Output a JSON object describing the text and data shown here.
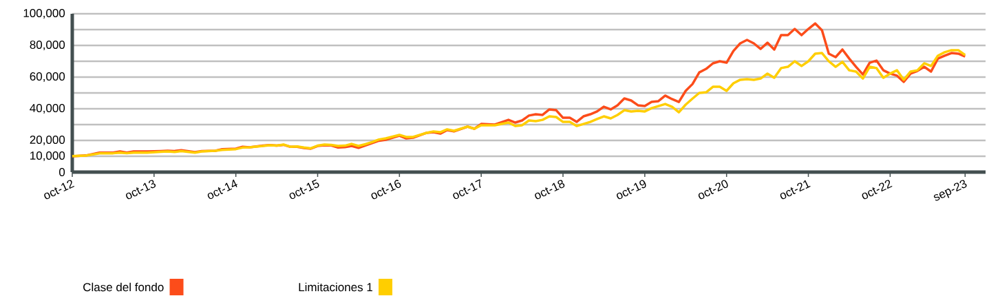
{
  "chart_data": {
    "type": "line",
    "x": [
      "2012-10",
      "2012-12",
      "2013-02",
      "2013-04",
      "2013-05",
      "2013-06",
      "2013-07",
      "2013-09",
      "2013-11",
      "2013-12",
      "2014-01",
      "2014-02",
      "2014-04",
      "2014-05",
      "2014-07",
      "2014-08",
      "2014-10",
      "2014-11",
      "2014-12",
      "2015-02",
      "2015-03",
      "2015-04",
      "2015-05",
      "2015-06",
      "2015-07",
      "2015-08",
      "2015-09",
      "2015-10",
      "2015-11",
      "2015-12",
      "2016-01",
      "2016-02",
      "2016-03",
      "2016-04",
      "2016-05",
      "2016-06",
      "2016-07",
      "2016-08",
      "2016-10",
      "2016-11",
      "2016-12",
      "2017-02",
      "2017-03",
      "2017-04",
      "2017-05",
      "2017-06",
      "2017-08",
      "2017-09",
      "2017-10",
      "2017-12",
      "2018-02",
      "2018-03",
      "2018-04",
      "2018-05",
      "2018-06",
      "2018-07",
      "2018-08",
      "2018-09",
      "2018-10",
      "2018-11",
      "2018-12",
      "2019-01",
      "2019-02",
      "2019-03",
      "2019-04",
      "2019-05",
      "2019-06",
      "2019-07",
      "2019-08",
      "2019-09",
      "2019-10",
      "2019-11",
      "2019-12",
      "2020-01",
      "2020-02",
      "2020-03",
      "2020-04",
      "2020-05",
      "2020-06",
      "2020-07",
      "2020-08",
      "2020-09",
      "2020-10",
      "2020-11",
      "2020-12",
      "2021-01",
      "2021-02",
      "2021-03",
      "2021-04",
      "2021-05",
      "2021-06",
      "2021-07",
      "2021-08",
      "2021-09",
      "2021-10",
      "2021-11",
      "2021-12",
      "2022-01",
      "2022-02",
      "2022-03",
      "2022-04",
      "2022-05",
      "2022-06",
      "2022-07",
      "2022-08",
      "2022-09",
      "2022-10",
      "2022-11",
      "2022-12",
      "2023-01",
      "2023-02",
      "2023-03",
      "2023-04",
      "2023-05",
      "2023-06",
      "2023-07",
      "2023-08",
      "2023-09"
    ],
    "series": [
      {
        "name": "Clase del fondo",
        "color": "#fc4c1a",
        "values": [
          10000,
          10500,
          12300,
          12300,
          13000,
          12300,
          13000,
          13000,
          13300,
          13500,
          13300,
          13800,
          12600,
          13300,
          13500,
          14500,
          14800,
          16000,
          15700,
          16700,
          17100,
          16700,
          17200,
          16000,
          16000,
          15200,
          14800,
          16500,
          17000,
          16800,
          15500,
          15800,
          16500,
          15300,
          16800,
          18300,
          19800,
          20400,
          23000,
          21300,
          21700,
          24800,
          25200,
          24300,
          26500,
          25700,
          28700,
          27400,
          30400,
          30000,
          33000,
          31300,
          32600,
          35700,
          36500,
          36100,
          39600,
          39100,
          34300,
          34300,
          31700,
          35200,
          36500,
          38300,
          41300,
          39600,
          42200,
          46500,
          45200,
          42200,
          41700,
          44300,
          44800,
          48300,
          46100,
          44300,
          51300,
          55600,
          63000,
          65200,
          68700,
          70000,
          69100,
          76500,
          81300,
          83500,
          81300,
          77800,
          81700,
          77400,
          86500,
          86500,
          90400,
          86500,
          90400,
          93900,
          89600,
          74800,
          72600,
          77400,
          71700,
          66500,
          61700,
          69100,
          70400,
          64300,
          62200,
          60900,
          57000,
          62200,
          63900,
          66500,
          63500,
          71700,
          73500,
          75200,
          74800,
          73000
        ]
      },
      {
        "name": "Limitaciones 1",
        "color": "#ffce00",
        "values": [
          10100,
          10400,
          11800,
          11900,
          12300,
          11900,
          12300,
          12300,
          12800,
          13000,
          12700,
          13300,
          12300,
          13000,
          13500,
          14000,
          14500,
          15500,
          15700,
          16500,
          17000,
          16700,
          17400,
          16000,
          16200,
          15500,
          15000,
          16700,
          17400,
          17200,
          16500,
          16700,
          17800,
          16500,
          17600,
          19000,
          20600,
          21300,
          23500,
          22200,
          22200,
          24800,
          25700,
          25200,
          27000,
          26100,
          28700,
          27400,
          29600,
          29600,
          31300,
          29100,
          29600,
          32600,
          32200,
          33000,
          35200,
          34800,
          31700,
          31700,
          29100,
          30400,
          31700,
          33500,
          35200,
          33900,
          36100,
          39100,
          38300,
          38700,
          38300,
          40400,
          41700,
          43000,
          41300,
          37800,
          42600,
          46400,
          50000,
          50400,
          53900,
          53900,
          51300,
          56100,
          58300,
          58700,
          58300,
          59100,
          62200,
          59600,
          65700,
          66500,
          70000,
          67000,
          70000,
          74800,
          75200,
          70000,
          66500,
          69600,
          64300,
          63500,
          59100,
          66500,
          65700,
          59600,
          62200,
          64300,
          58300,
          63500,
          64300,
          68700,
          67000,
          73500,
          75700,
          77000,
          77000,
          73900
        ]
      }
    ],
    "xlim": [
      "2012-10",
      "2023-12"
    ],
    "xticks": [
      {
        "value": "2012-10",
        "label": "oct-12"
      },
      {
        "value": "2013-10",
        "label": "oct-13"
      },
      {
        "value": "2014-10",
        "label": "oct-14"
      },
      {
        "value": "2015-10",
        "label": "oct-15"
      },
      {
        "value": "2016-10",
        "label": "oct-16"
      },
      {
        "value": "2017-10",
        "label": "oct-17"
      },
      {
        "value": "2018-10",
        "label": "oct-18"
      },
      {
        "value": "2019-10",
        "label": "oct-19"
      },
      {
        "value": "2020-10",
        "label": "oct-20"
      },
      {
        "value": "2021-10",
        "label": "oct-21"
      },
      {
        "value": "2022-10",
        "label": "oct-22"
      },
      {
        "value": "2023-09",
        "label": "sep-23"
      }
    ],
    "ylim": [
      0,
      100000
    ],
    "yticks": [
      0,
      {
        "value": 10000,
        "label": "10,000"
      },
      {
        "value": 20000,
        "label": "20,000"
      },
      {
        "value": 30000,
        "label": null
      },
      {
        "value": 40000,
        "label": "40,000"
      },
      {
        "value": 50000,
        "label": null
      },
      {
        "value": 60000,
        "label": "60,000"
      },
      {
        "value": 70000,
        "label": null
      },
      {
        "value": 80000,
        "label": "80,000"
      },
      {
        "value": 90000,
        "label": null
      },
      {
        "value": 100000,
        "label": "100,000"
      }
    ],
    "grid": "y",
    "legend": "bottom",
    "marker": "none",
    "line_style": "solid"
  }
}
